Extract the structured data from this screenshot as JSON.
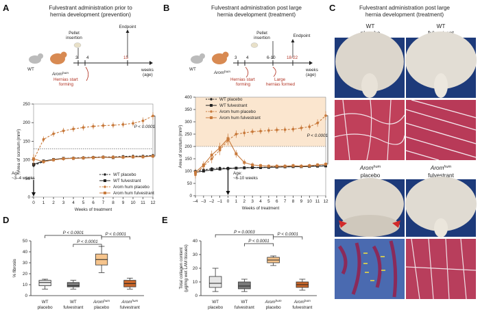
{
  "panels": {
    "A": {
      "letter": "A",
      "title": [
        "Fulvestrant administration prior to",
        "hernia development (prevention)"
      ],
      "timeline": {
        "pellet": [
          "Pellet",
          "insertion"
        ],
        "endpoint": "Endpoint",
        "wt": "WT",
        "arom": "Arom",
        "arom_sup": "hum",
        "t3": "3",
        "t4": "4",
        "t15": "15",
        "weeks": [
          "weeks",
          "(age)"
        ],
        "hernias": [
          "Hernias start",
          "forming"
        ]
      },
      "age_note": [
        "Age:",
        "~3–4 weeks"
      ],
      "pvalue": "P < 0.0001"
    },
    "B": {
      "letter": "B",
      "title": [
        "Fulvestrant administration post large",
        "hernia development (treatment)"
      ],
      "timeline": {
        "pellet": [
          "Pellet",
          "insertion"
        ],
        "endpoint": "Endpoint",
        "wt": "WT",
        "arom": "Arom",
        "arom_sup": "hum",
        "t3": "3",
        "t4": "4",
        "t610": "6-10",
        "t1822": "18-22",
        "weeks": [
          "weeks",
          "(age)"
        ],
        "hernias": [
          "Hernias start",
          "forming"
        ],
        "large": [
          "Large",
          "hernias formed"
        ]
      },
      "age_note": [
        "Age:",
        "~6-10 weeks"
      ],
      "pvalue": "P < 0.0001"
    },
    "C": {
      "letter": "C",
      "title": [
        "Fulvestrant administration post large",
        "hernia development (treatment)"
      ],
      "cols": [
        {
          "line1": "WT",
          "line2": "placebo"
        },
        {
          "line1": "WT",
          "line2": "fulvestrant"
        },
        {
          "line1": "Arom",
          "sup": "hum",
          "line2": "placebo"
        },
        {
          "line1": "Arom",
          "sup": "hum",
          "line2": "fulvestrant"
        }
      ]
    },
    "D": {
      "letter": "D",
      "pvalues": [
        "P < 0.0001",
        "P < 0.0001",
        "P < 0.0001"
      ]
    },
    "E": {
      "letter": "E",
      "pvalues": [
        "P = 0.0003",
        "P < 0.0001",
        "P < 0.0001"
      ]
    }
  },
  "colors": {
    "wt_placebo": "#e6e6e6",
    "wt_fulvestrant": "#7a7a7a",
    "arom_placebo": "#f6c48c",
    "arom_fulvestrant": "#c8662a",
    "legend_orange": "#c87a3c",
    "shade": "#fbe6cf",
    "text_red": "#b03020"
  },
  "chart_data": [
    {
      "id": "A",
      "type": "line",
      "xlabel": "Weeks of treatment",
      "ylabel": "Area of scrotum (mm²)",
      "x": [
        0,
        1,
        2,
        3,
        4,
        5,
        6,
        7,
        8,
        9,
        10,
        11,
        12
      ],
      "xticks": [
        "0",
        "1",
        "2",
        "3",
        "4",
        "5",
        "6",
        "7",
        "8",
        "9",
        "10",
        "11",
        "12"
      ],
      "ylim": [
        0,
        250
      ],
      "yticks": [
        "0",
        "50",
        "100",
        "150",
        "200",
        "250"
      ],
      "threshold": 130,
      "series": [
        {
          "name": "WT placebo",
          "values": [
            85,
            95,
            100,
            103,
            105,
            106,
            107,
            108,
            108,
            109,
            110,
            110,
            112
          ],
          "err": [
            5,
            4,
            4,
            4,
            4,
            4,
            4,
            4,
            4,
            4,
            4,
            4,
            4
          ]
        },
        {
          "name": "WT fulvestrant",
          "values": [
            88,
            97,
            101,
            104,
            104,
            105,
            106,
            107,
            106,
            108,
            108,
            109,
            110
          ],
          "err": [
            5,
            4,
            4,
            4,
            4,
            4,
            4,
            4,
            4,
            4,
            4,
            4,
            4
          ]
        },
        {
          "name": "Arom hum placebo",
          "values": [
            100,
            155,
            170,
            178,
            183,
            187,
            190,
            192,
            193,
            195,
            198,
            205,
            218
          ],
          "err": [
            15,
            8,
            8,
            8,
            8,
            8,
            8,
            8,
            8,
            8,
            8,
            9,
            10
          ]
        },
        {
          "name": "Arom hum fulvestrant",
          "values": [
            103,
            95,
            100,
            103,
            104,
            105,
            106,
            107,
            107,
            107,
            108,
            108,
            110
          ],
          "err": [
            12,
            5,
            5,
            5,
            5,
            5,
            5,
            5,
            5,
            5,
            5,
            5,
            5
          ]
        }
      ]
    },
    {
      "id": "B",
      "type": "line",
      "xlabel": "Weeks of treatment",
      "ylabel": "Area of scrotum (mm²)",
      "x": [
        -4,
        -3,
        -2,
        -1,
        0,
        1,
        2,
        3,
        4,
        5,
        6,
        7,
        8,
        9,
        10,
        11,
        12
      ],
      "xticks": [
        "–4",
        "–3",
        "–2",
        "–1",
        "0",
        "1",
        "2",
        "3",
        "4",
        "5",
        "6",
        "7",
        "8",
        "9",
        "10",
        "11",
        "12"
      ],
      "ylim": [
        0,
        400
      ],
      "yticks": [
        "0",
        "50",
        "100",
        "150",
        "200",
        "250",
        "300",
        "350",
        "400"
      ],
      "threshold": 200,
      "series": [
        {
          "name": "WT placebo",
          "values": [
            100,
            105,
            110,
            112,
            112,
            112,
            114,
            115,
            115,
            116,
            117,
            118,
            118,
            119,
            120,
            121,
            122
          ],
          "err": [
            6,
            5,
            5,
            5,
            5,
            5,
            5,
            5,
            5,
            5,
            5,
            5,
            5,
            5,
            5,
            5,
            5
          ]
        },
        {
          "name": "WT fulvestrant",
          "values": [
            95,
            100,
            105,
            108,
            110,
            112,
            113,
            114,
            114,
            115,
            116,
            117,
            118,
            118,
            119,
            120,
            121
          ],
          "err": [
            6,
            5,
            5,
            5,
            5,
            5,
            5,
            5,
            5,
            5,
            5,
            5,
            5,
            5,
            5,
            5,
            5
          ]
        },
        {
          "name": "Arom hum placebo",
          "values": [
            85,
            120,
            150,
            185,
            225,
            250,
            255,
            260,
            262,
            265,
            267,
            268,
            270,
            275,
            280,
            295,
            325
          ],
          "err": [
            15,
            15,
            18,
            20,
            20,
            15,
            15,
            12,
            12,
            12,
            12,
            12,
            12,
            12,
            12,
            15,
            18
          ]
        },
        {
          "name": "Arom hum fulvestrant",
          "values": [
            95,
            125,
            165,
            195,
            232,
            170,
            135,
            125,
            122,
            120,
            120,
            120,
            122,
            120,
            122,
            125,
            128
          ],
          "err": [
            15,
            15,
            18,
            20,
            20,
            15,
            12,
            10,
            8,
            8,
            8,
            8,
            8,
            8,
            8,
            8,
            8
          ]
        }
      ]
    },
    {
      "id": "D",
      "type": "box",
      "ylabel": "% fibrosis",
      "ylim": [
        0,
        50
      ],
      "yticks": [
        "0",
        "10",
        "20",
        "30",
        "40",
        "50"
      ],
      "categories": [
        {
          "line1": "WT",
          "line2": "placebo"
        },
        {
          "line1": "WT",
          "line2": "fulvestrant"
        },
        {
          "line1": "Arom",
          "sup": "hum",
          "line2": "placebo"
        },
        {
          "line1": "Arom",
          "sup": "hum",
          "line2": "fulvestrant"
        }
      ],
      "boxes": [
        {
          "min": 6,
          "q1": 9,
          "median": 12,
          "q3": 14,
          "max": 15
        },
        {
          "min": 6,
          "q1": 8,
          "median": 9,
          "q3": 12,
          "max": 14
        },
        {
          "min": 21,
          "q1": 28,
          "median": 33,
          "q3": 38,
          "max": 45
        },
        {
          "min": 6,
          "q1": 8,
          "median": 11,
          "q3": 14,
          "max": 16
        }
      ]
    },
    {
      "id": "E",
      "type": "box",
      "ylabel": "Total collagen content (μg/mg wet LAM tissues)",
      "ylim": [
        0,
        40
      ],
      "yticks": [
        "0",
        "10",
        "20",
        "30",
        "40"
      ],
      "categories": [
        {
          "line1": "WT",
          "line2": "placebo"
        },
        {
          "line1": "WT",
          "line2": "fulvestrant"
        },
        {
          "line1": "Arom",
          "sup": "hum",
          "line2": "placebo"
        },
        {
          "line1": "Arom",
          "sup": "hum",
          "line2": "fulvestrant"
        }
      ],
      "boxes": [
        {
          "min": 3,
          "q1": 6,
          "median": 9,
          "q3": 14,
          "max": 20
        },
        {
          "min": 3,
          "q1": 5,
          "median": 7,
          "q3": 10,
          "max": 12
        },
        {
          "min": 22,
          "q1": 24,
          "median": 26,
          "q3": 28,
          "max": 29
        },
        {
          "min": 4,
          "q1": 6,
          "median": 8,
          "q3": 10,
          "max": 12
        }
      ]
    }
  ]
}
